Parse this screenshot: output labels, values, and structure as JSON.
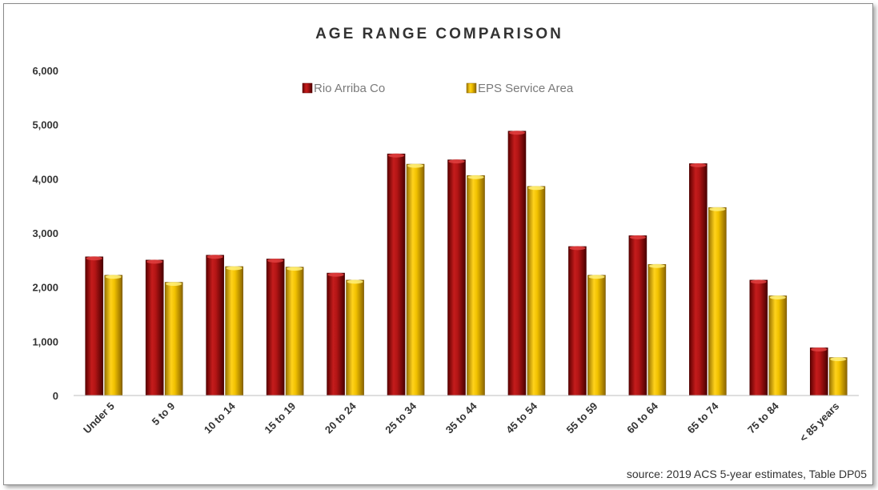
{
  "chart_data": {
    "type": "bar",
    "title": "AGE RANGE COMPARISON",
    "categories": [
      "Under 5",
      "5 to 9",
      "10 to 14",
      "15 to 19",
      "20 to 24",
      "25 to 34",
      "35 to 44",
      "45 to 54",
      "55 to 59",
      "60 to 64",
      "65 to 74",
      "75 to 84",
      "< 85 years"
    ],
    "series": [
      {
        "name": "Rio Arriba Co",
        "color": "#a01010",
        "values": [
          2560,
          2500,
          2590,
          2520,
          2260,
          4460,
          4350,
          4880,
          2750,
          2950,
          4280,
          2130,
          880
        ]
      },
      {
        "name": "EPS Service Area",
        "color": "#f2c200",
        "values": [
          2220,
          2090,
          2380,
          2370,
          2130,
          4270,
          4060,
          3860,
          2220,
          2420,
          3470,
          1840,
          700
        ]
      }
    ],
    "yticks": [
      "0",
      "1,000",
      "2,000",
      "3,000",
      "4,000",
      "5,000",
      "6,000"
    ],
    "ylim": [
      0,
      6000
    ],
    "grid": false,
    "legend_position": "top-center",
    "source": "source: 2019 ACS 5-year estimates, Table DP05"
  }
}
